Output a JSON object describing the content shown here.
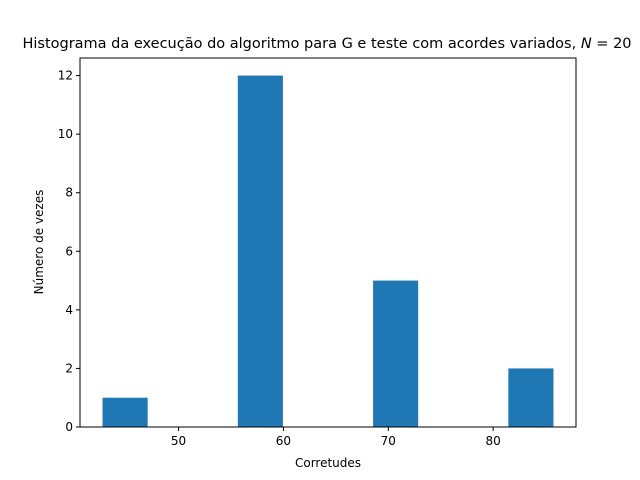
{
  "chart_data": {
    "type": "bar",
    "title_main": "Histograma da execução do algoritmo para G e teste com acordes variados, ",
    "title_var": "N",
    "title_suffix": " = 20",
    "xlabel": "Corretudes",
    "ylabel": "Número de vezes",
    "bars": [
      {
        "x0": 42.75,
        "x1": 47.05,
        "value": 1
      },
      {
        "x0": 47.05,
        "x1": 51.35,
        "value": 0
      },
      {
        "x0": 51.35,
        "x1": 55.65,
        "value": 0
      },
      {
        "x0": 55.65,
        "x1": 59.95,
        "value": 12
      },
      {
        "x0": 59.95,
        "x1": 64.25,
        "value": 0
      },
      {
        "x0": 64.25,
        "x1": 68.55,
        "value": 0
      },
      {
        "x0": 68.55,
        "x1": 72.85,
        "value": 5
      },
      {
        "x0": 72.85,
        "x1": 77.15,
        "value": 0
      },
      {
        "x0": 77.15,
        "x1": 81.45,
        "value": 0
      },
      {
        "x0": 81.45,
        "x1": 85.75,
        "value": 2
      }
    ],
    "xlim": [
      40.6,
      87.9
    ],
    "ylim": [
      0,
      12.6
    ],
    "xticks": [
      50,
      60,
      70,
      80
    ],
    "yticks": [
      0,
      2,
      4,
      6,
      8,
      10,
      12
    ],
    "bar_color": "#1f77b4",
    "grid": false,
    "legend": "none"
  }
}
